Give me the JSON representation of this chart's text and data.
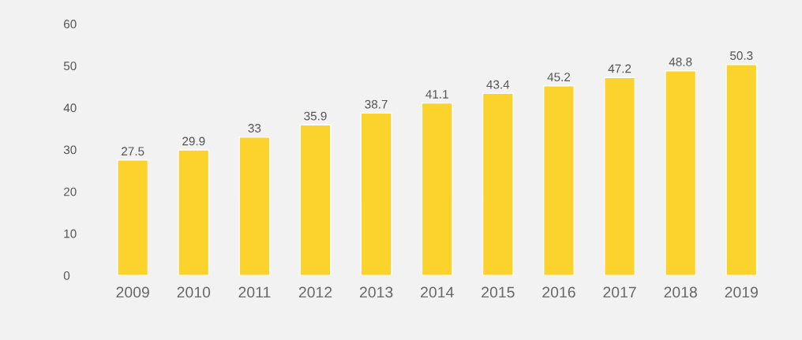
{
  "chart_data": {
    "type": "bar",
    "categories": [
      "2009",
      "2010",
      "2011",
      "2012",
      "2013",
      "2014",
      "2015",
      "2016",
      "2017",
      "2018",
      "2019"
    ],
    "values": [
      27.5,
      29.9,
      33,
      35.9,
      38.7,
      41.1,
      43.4,
      45.2,
      47.2,
      48.8,
      50.3
    ],
    "color": "#fcd22c",
    "ylim": [
      0,
      60
    ],
    "yticks": [
      0,
      10,
      20,
      30,
      40,
      50,
      60
    ],
    "grid": false,
    "data_labels": true
  }
}
